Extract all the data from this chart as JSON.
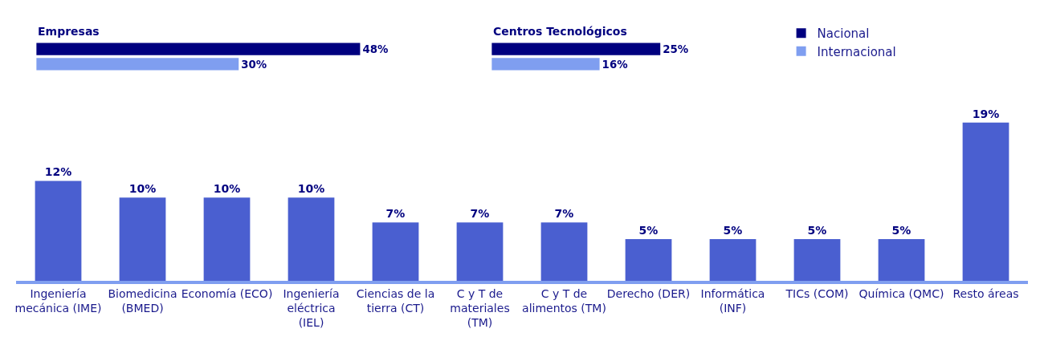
{
  "chart_data": [
    {
      "type": "bar",
      "title": "Empresas",
      "orientation": "horizontal",
      "categories": [
        null
      ],
      "legend": "top right",
      "tick_labels": false,
      "series": [
        {
          "name": "Nacional",
          "color": "#00007f",
          "values": [
            48
          ],
          "value_labels": [
            "48%"
          ]
        },
        {
          "name": "Internacional",
          "color": "#7f9ef0",
          "values": [
            30
          ],
          "value_labels": [
            "30%"
          ]
        }
      ]
    },
    {
      "type": "bar",
      "title": "Centros Tecnológicos",
      "orientation": "horizontal",
      "categories": [
        null
      ],
      "tick_labels": false,
      "series": [
        {
          "color": "#00007f",
          "values": [
            25
          ],
          "value_labels": [
            "25%"
          ]
        },
        {
          "color": "#7f9ef0",
          "values": [
            16
          ],
          "value_labels": [
            "16%"
          ]
        }
      ]
    },
    {
      "type": "bar",
      "tick_labels": "x",
      "categories": [
        "Ingeniería mecánica (IME)",
        "Biomedicina (BMED)",
        "Economía (ECO)",
        "Ingeniería eléctrica (IEL)",
        "Ciencias de la tierra (CT)",
        "C y T de materiales (TM)",
        "C y T de alimentos (TM)",
        "Derecho (DER)",
        "Informática (INF)",
        "TICs (COM)",
        "Química (QMC)",
        "Resto áreas"
      ],
      "series": [
        {
          "color": "#4a5fd0",
          "values": [
            12,
            10,
            10,
            10,
            7,
            7,
            7,
            5,
            5,
            5,
            5,
            19
          ],
          "value_labels": [
            "12%",
            "10%",
            "10%",
            "10%",
            "7%",
            "7%",
            "7%",
            "5%",
            "5%",
            "5%",
            "5%",
            "19%"
          ]
        }
      ]
    }
  ]
}
